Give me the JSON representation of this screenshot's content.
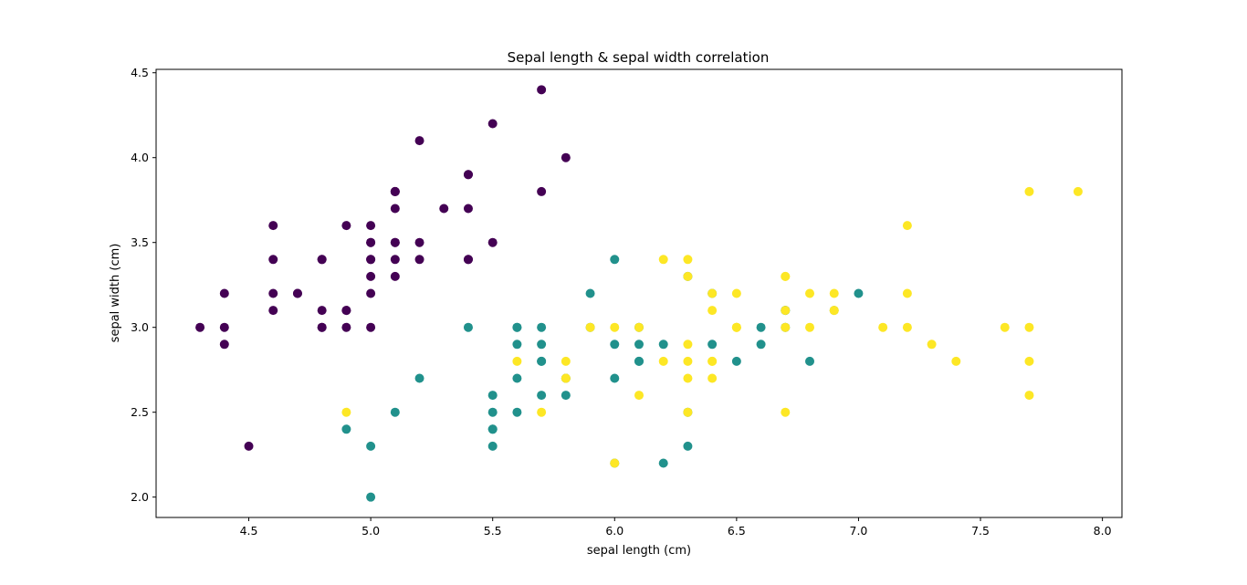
{
  "chart_data": {
    "type": "scatter",
    "title": "Sepal length & sepal width correlation",
    "xlabel": "sepal length (cm)",
    "ylabel": "sepal width (cm)",
    "xlim": [
      4.12,
      8.08
    ],
    "ylim": [
      1.88,
      4.52
    ],
    "xticks": [
      "4.5",
      "5.0",
      "5.5",
      "6.0",
      "6.5",
      "7.0",
      "7.5",
      "8.0"
    ],
    "yticks": [
      "2.0",
      "2.5",
      "3.0",
      "3.5",
      "4.0",
      "4.5"
    ],
    "grid": false,
    "legend": "none",
    "series": [
      {
        "color": "#440154",
        "points": [
          [
            5.1,
            3.5
          ],
          [
            4.9,
            3.0
          ],
          [
            4.7,
            3.2
          ],
          [
            4.6,
            3.1
          ],
          [
            5.0,
            3.6
          ],
          [
            5.4,
            3.9
          ],
          [
            4.6,
            3.4
          ],
          [
            5.0,
            3.4
          ],
          [
            4.4,
            2.9
          ],
          [
            4.9,
            3.1
          ],
          [
            5.4,
            3.7
          ],
          [
            4.8,
            3.4
          ],
          [
            4.8,
            3.0
          ],
          [
            4.3,
            3.0
          ],
          [
            5.8,
            4.0
          ],
          [
            5.7,
            4.4
          ],
          [
            5.4,
            3.9
          ],
          [
            5.1,
            3.5
          ],
          [
            5.7,
            3.8
          ],
          [
            5.1,
            3.8
          ],
          [
            5.4,
            3.4
          ],
          [
            5.1,
            3.7
          ],
          [
            4.6,
            3.6
          ],
          [
            5.1,
            3.3
          ],
          [
            4.8,
            3.4
          ],
          [
            5.0,
            3.0
          ],
          [
            5.0,
            3.4
          ],
          [
            5.2,
            3.5
          ],
          [
            5.2,
            3.4
          ],
          [
            4.7,
            3.2
          ],
          [
            4.8,
            3.1
          ],
          [
            5.4,
            3.4
          ],
          [
            5.2,
            4.1
          ],
          [
            5.5,
            4.2
          ],
          [
            4.9,
            3.1
          ],
          [
            5.0,
            3.2
          ],
          [
            5.5,
            3.5
          ],
          [
            4.9,
            3.6
          ],
          [
            4.4,
            3.0
          ],
          [
            5.1,
            3.4
          ],
          [
            5.0,
            3.5
          ],
          [
            4.5,
            2.3
          ],
          [
            4.4,
            3.2
          ],
          [
            5.0,
            3.5
          ],
          [
            5.1,
            3.8
          ],
          [
            4.8,
            3.0
          ],
          [
            5.1,
            3.8
          ],
          [
            4.6,
            3.2
          ],
          [
            5.3,
            3.7
          ],
          [
            5.0,
            3.3
          ]
        ]
      },
      {
        "color": "#21918c",
        "points": [
          [
            7.0,
            3.2
          ],
          [
            6.4,
            3.2
          ],
          [
            6.9,
            3.1
          ],
          [
            5.5,
            2.3
          ],
          [
            6.5,
            2.8
          ],
          [
            5.7,
            2.8
          ],
          [
            6.3,
            3.3
          ],
          [
            4.9,
            2.4
          ],
          [
            6.6,
            2.9
          ],
          [
            5.2,
            2.7
          ],
          [
            5.0,
            2.0
          ],
          [
            5.9,
            3.0
          ],
          [
            6.0,
            2.2
          ],
          [
            6.1,
            2.9
          ],
          [
            5.6,
            2.9
          ],
          [
            6.7,
            3.1
          ],
          [
            5.6,
            3.0
          ],
          [
            5.8,
            2.7
          ],
          [
            6.2,
            2.2
          ],
          [
            5.6,
            2.5
          ],
          [
            5.9,
            3.2
          ],
          [
            6.1,
            2.8
          ],
          [
            6.3,
            2.5
          ],
          [
            6.1,
            2.8
          ],
          [
            6.4,
            2.9
          ],
          [
            6.6,
            3.0
          ],
          [
            6.8,
            2.8
          ],
          [
            6.7,
            3.0
          ],
          [
            6.0,
            2.9
          ],
          [
            5.7,
            2.6
          ],
          [
            5.5,
            2.4
          ],
          [
            5.5,
            2.4
          ],
          [
            5.8,
            2.7
          ],
          [
            6.0,
            2.7
          ],
          [
            5.4,
            3.0
          ],
          [
            6.0,
            3.4
          ],
          [
            6.7,
            3.1
          ],
          [
            6.3,
            2.3
          ],
          [
            5.6,
            3.0
          ],
          [
            5.5,
            2.5
          ],
          [
            5.5,
            2.6
          ],
          [
            6.1,
            3.0
          ],
          [
            5.8,
            2.6
          ],
          [
            5.0,
            2.3
          ],
          [
            5.6,
            2.7
          ],
          [
            5.7,
            3.0
          ],
          [
            5.7,
            2.9
          ],
          [
            6.2,
            2.9
          ],
          [
            5.1,
            2.5
          ],
          [
            5.7,
            2.8
          ]
        ]
      },
      {
        "color": "#fde725",
        "points": [
          [
            6.3,
            3.3
          ],
          [
            5.8,
            2.7
          ],
          [
            7.1,
            3.0
          ],
          [
            6.3,
            2.9
          ],
          [
            6.5,
            3.0
          ],
          [
            7.6,
            3.0
          ],
          [
            4.9,
            2.5
          ],
          [
            7.3,
            2.9
          ],
          [
            6.7,
            2.5
          ],
          [
            7.2,
            3.6
          ],
          [
            6.5,
            3.2
          ],
          [
            6.4,
            2.7
          ],
          [
            6.8,
            3.0
          ],
          [
            5.7,
            2.5
          ],
          [
            5.8,
            2.8
          ],
          [
            6.4,
            3.2
          ],
          [
            6.5,
            3.0
          ],
          [
            7.7,
            3.8
          ],
          [
            7.7,
            2.6
          ],
          [
            6.0,
            2.2
          ],
          [
            6.9,
            3.2
          ],
          [
            5.6,
            2.8
          ],
          [
            7.7,
            2.8
          ],
          [
            6.3,
            2.7
          ],
          [
            6.7,
            3.3
          ],
          [
            7.2,
            3.2
          ],
          [
            6.2,
            2.8
          ],
          [
            6.1,
            3.0
          ],
          [
            6.4,
            2.8
          ],
          [
            7.2,
            3.0
          ],
          [
            7.4,
            2.8
          ],
          [
            7.9,
            3.8
          ],
          [
            6.4,
            2.8
          ],
          [
            6.3,
            2.8
          ],
          [
            6.1,
            2.6
          ],
          [
            7.7,
            3.0
          ],
          [
            6.3,
            3.4
          ],
          [
            6.4,
            3.1
          ],
          [
            6.0,
            3.0
          ],
          [
            6.9,
            3.1
          ],
          [
            6.7,
            3.1
          ],
          [
            6.9,
            3.1
          ],
          [
            5.8,
            2.7
          ],
          [
            6.8,
            3.2
          ],
          [
            6.7,
            3.3
          ],
          [
            6.7,
            3.0
          ],
          [
            6.3,
            2.5
          ],
          [
            6.5,
            3.0
          ],
          [
            6.2,
            3.4
          ],
          [
            5.9,
            3.0
          ]
        ]
      }
    ]
  }
}
